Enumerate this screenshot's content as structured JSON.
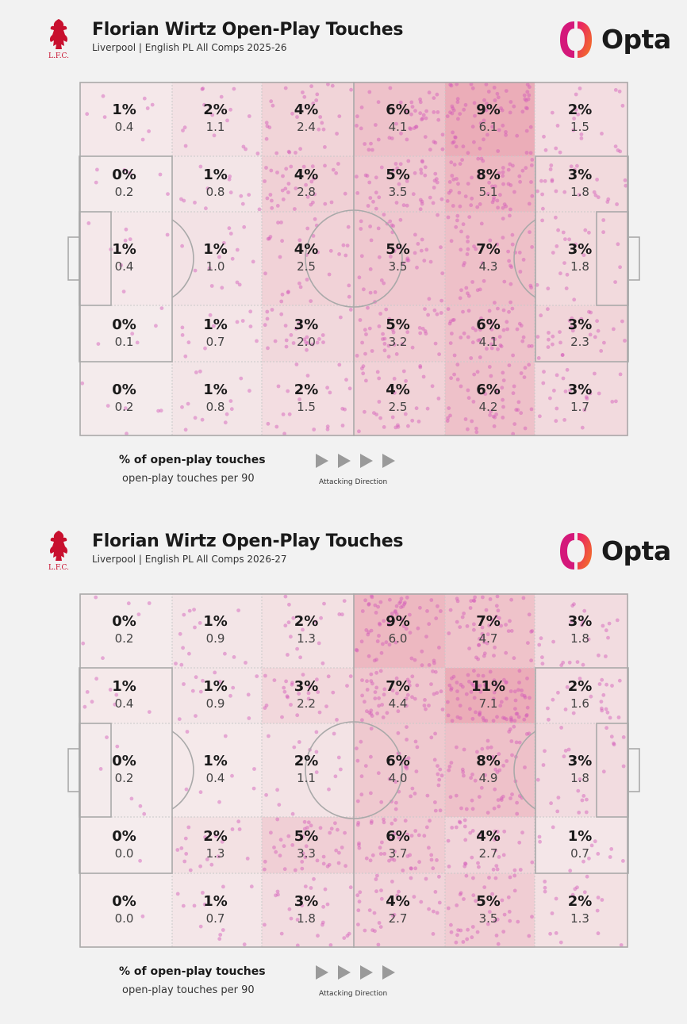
{
  "colors": {
    "heat": "#e89aa8",
    "dot": "#d257b8",
    "lines": "#a9a9a9",
    "opta_pink": "#e8186e",
    "opta_orange": "#f47a20",
    "crest": "#c8102e"
  },
  "icons": {
    "club_crest": "liverbird-crest-icon",
    "opta_logo": "opta-logo-icon",
    "arrow": "play-arrow-icon"
  },
  "crest_text": "L.F.C.",
  "opta_text": "Opta",
  "panels": [
    {
      "title": "Florian Wirtz Open-Play Touches",
      "subtitle": "Liverpool | English PL All Comps 2025-26",
      "legend_pct": "% of open-play touches",
      "legend_p90": "open-play touches per 90",
      "attacking_direction": "Attacking Direction"
    },
    {
      "title": "Florian Wirtz Open-Play Touches",
      "subtitle": "Liverpool | English PL All Comps 2026-27",
      "legend_pct": "% of open-play touches",
      "legend_p90": "open-play touches per 90",
      "attacking_direction": "Attacking Direction"
    }
  ],
  "chart_data": [
    {
      "type": "heatmap",
      "title": "Florian Wirtz Open-Play Touches",
      "subtitle": "Liverpool | English PL All Comps 2025-26",
      "attacking_direction": "left-to-right",
      "columns": 6,
      "rows": 5,
      "pct": [
        [
          "1%",
          "2%",
          "4%",
          "6%",
          "9%",
          "2%"
        ],
        [
          "0%",
          "1%",
          "4%",
          "5%",
          "8%",
          "3%"
        ],
        [
          "1%",
          "1%",
          "4%",
          "5%",
          "7%",
          "3%"
        ],
        [
          "0%",
          "1%",
          "3%",
          "5%",
          "6%",
          "3%"
        ],
        [
          "0%",
          "1%",
          "2%",
          "4%",
          "6%",
          "3%"
        ]
      ],
      "per90": [
        [
          "0.4",
          "1.1",
          "2.4",
          "4.1",
          "6.1",
          "1.5"
        ],
        [
          "0.2",
          "0.8",
          "2.8",
          "3.5",
          "5.1",
          "1.8"
        ],
        [
          "0.4",
          "1.0",
          "2.5",
          "3.5",
          "4.3",
          "1.8"
        ],
        [
          "0.1",
          "0.7",
          "2.0",
          "3.2",
          "4.1",
          "2.3"
        ],
        [
          "0.2",
          "0.8",
          "1.5",
          "2.5",
          "4.2",
          "1.7"
        ]
      ]
    },
    {
      "type": "heatmap",
      "title": "Florian Wirtz Open-Play Touches",
      "subtitle": "Liverpool | English PL All Comps 2026-27",
      "attacking_direction": "left-to-right",
      "columns": 6,
      "rows": 5,
      "pct": [
        [
          "0%",
          "1%",
          "2%",
          "9%",
          "7%",
          "3%"
        ],
        [
          "1%",
          "1%",
          "3%",
          "7%",
          "11%",
          "2%"
        ],
        [
          "0%",
          "1%",
          "2%",
          "6%",
          "8%",
          "3%"
        ],
        [
          "0%",
          "2%",
          "5%",
          "6%",
          "4%",
          "1%"
        ],
        [
          "0%",
          "1%",
          "3%",
          "4%",
          "5%",
          "2%"
        ]
      ],
      "per90": [
        [
          "0.2",
          "0.9",
          "1.3",
          "6.0",
          "4.7",
          "1.8"
        ],
        [
          "0.4",
          "0.9",
          "2.2",
          "4.4",
          "7.1",
          "1.6"
        ],
        [
          "0.2",
          "0.4",
          "1.1",
          "4.0",
          "4.9",
          "1.8"
        ],
        [
          "0.0",
          "1.3",
          "3.3",
          "3.7",
          "2.7",
          "0.7"
        ],
        [
          "0.0",
          "0.7",
          "1.8",
          "2.7",
          "3.5",
          "1.3"
        ]
      ]
    }
  ]
}
